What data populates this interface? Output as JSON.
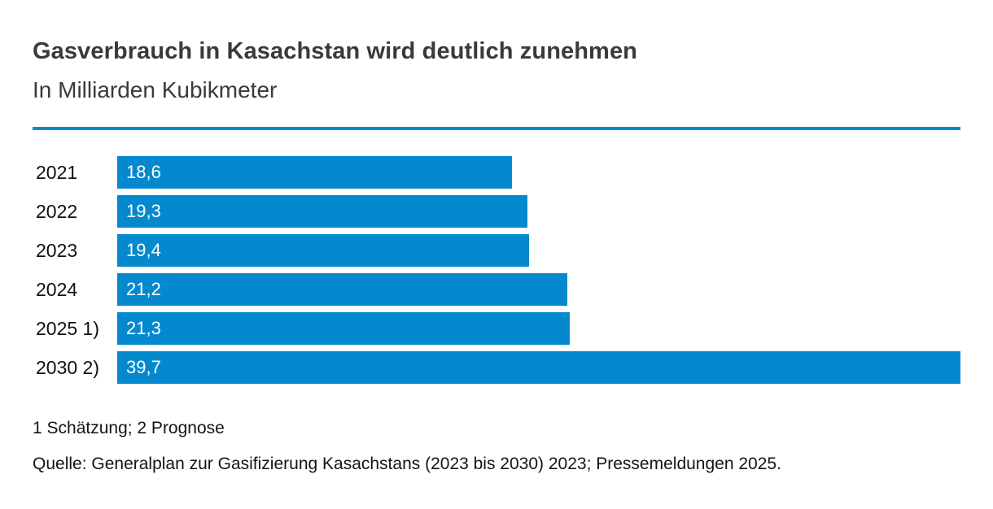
{
  "header": {
    "title": "Gasverbrauch in Kasachstan wird deutlich zunehmen",
    "subtitle": "In Milliarden Kubikmeter"
  },
  "chart_data": {
    "type": "bar",
    "orientation": "horizontal",
    "title": "Gasverbrauch in Kasachstan wird deutlich zunehmen",
    "unit_label": "In Milliarden Kubikmeter",
    "categories": [
      "2021",
      "2022",
      "2023",
      "2024",
      "2025 1)",
      "2030 2)"
    ],
    "values": [
      18.6,
      19.3,
      19.4,
      21.2,
      21.3,
      39.7
    ],
    "value_labels": [
      "18,6",
      "19,3",
      "19,4",
      "21,2",
      "21,3",
      "39,7"
    ],
    "xlim": [
      0,
      39.7
    ],
    "grid": false,
    "legend": false,
    "value_label_position": "inside-left",
    "bar_color": "#0589ce"
  },
  "footer": {
    "footnote": "1 Schätzung; 2 Prognose",
    "source": "Quelle: Generalplan zur Gasifizierung Kasachstans (2023 bis 2030) 2023; Pressemeldungen 2025."
  },
  "colors": {
    "accent": "#0589ce",
    "heading_text": "#3a3a3a",
    "body_text": "#141414",
    "bar_value_text": "#ffffff",
    "background": "#ffffff"
  }
}
